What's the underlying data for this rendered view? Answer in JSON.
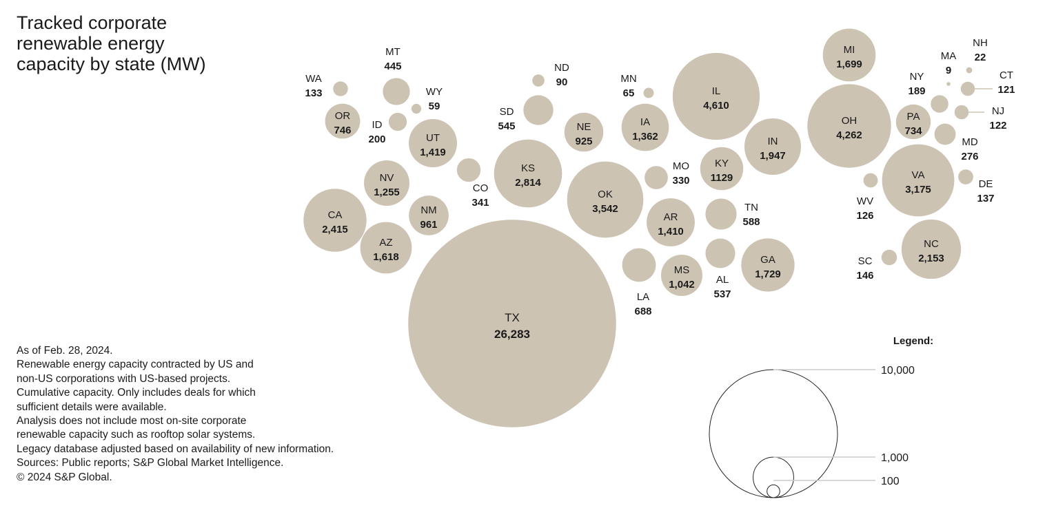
{
  "chart_data": {
    "type": "bubble",
    "title": "Tracked corporate renewable energy capacity by state (MW)",
    "unit": "MW",
    "color": "#cdc3b3",
    "states": [
      {
        "state": "WA",
        "value": 133,
        "value_label": "133"
      },
      {
        "state": "MT",
        "value": 445,
        "value_label": "445"
      },
      {
        "state": "WY",
        "value": 59,
        "value_label": "59"
      },
      {
        "state": "OR",
        "value": 746,
        "value_label": "746"
      },
      {
        "state": "ID",
        "value": 200,
        "value_label": "200"
      },
      {
        "state": "UT",
        "value": 1419,
        "value_label": "1,419"
      },
      {
        "state": "CO",
        "value": 341,
        "value_label": "341"
      },
      {
        "state": "NV",
        "value": 1255,
        "value_label": "1,255"
      },
      {
        "state": "CA",
        "value": 2415,
        "value_label": "2,415"
      },
      {
        "state": "NM",
        "value": 961,
        "value_label": "961"
      },
      {
        "state": "AZ",
        "value": 1618,
        "value_label": "1,618"
      },
      {
        "state": "ND",
        "value": 90,
        "value_label": "90"
      },
      {
        "state": "SD",
        "value": 545,
        "value_label": "545"
      },
      {
        "state": "NE",
        "value": 925,
        "value_label": "925"
      },
      {
        "state": "KS",
        "value": 2814,
        "value_label": "2,814"
      },
      {
        "state": "TX",
        "value": 26283,
        "value_label": "26,283"
      },
      {
        "state": "OK",
        "value": 3542,
        "value_label": "3,542"
      },
      {
        "state": "MN",
        "value": 65,
        "value_label": "65"
      },
      {
        "state": "IA",
        "value": 1362,
        "value_label": "1,362"
      },
      {
        "state": "IL",
        "value": 4610,
        "value_label": "4,610"
      },
      {
        "state": "MO",
        "value": 330,
        "value_label": "330"
      },
      {
        "state": "KY",
        "value": 1129,
        "value_label": "1129"
      },
      {
        "state": "IN",
        "value": 1947,
        "value_label": "1,947"
      },
      {
        "state": "AR",
        "value": 1410,
        "value_label": "1,410"
      },
      {
        "state": "TN",
        "value": 588,
        "value_label": "588"
      },
      {
        "state": "LA",
        "value": 688,
        "value_label": "688"
      },
      {
        "state": "MS",
        "value": 1042,
        "value_label": "1,042"
      },
      {
        "state": "AL",
        "value": 537,
        "value_label": "537"
      },
      {
        "state": "GA",
        "value": 1729,
        "value_label": "1,729"
      },
      {
        "state": "MI",
        "value": 1699,
        "value_label": "1,699"
      },
      {
        "state": "OH",
        "value": 4262,
        "value_label": "4,262"
      },
      {
        "state": "NY",
        "value": 189,
        "value_label": "189"
      },
      {
        "state": "MA",
        "value": 9,
        "value_label": "9"
      },
      {
        "state": "NH",
        "value": 22,
        "value_label": "22"
      },
      {
        "state": "CT",
        "value": 121,
        "value_label": "121"
      },
      {
        "state": "NJ",
        "value": 122,
        "value_label": "122"
      },
      {
        "state": "PA",
        "value": 734,
        "value_label": "734"
      },
      {
        "state": "MD",
        "value": 276,
        "value_label": "276"
      },
      {
        "state": "VA",
        "value": 3175,
        "value_label": "3,175"
      },
      {
        "state": "DE",
        "value": 137,
        "value_label": "137"
      },
      {
        "state": "WV",
        "value": 126,
        "value_label": "126"
      },
      {
        "state": "NC",
        "value": 2153,
        "value_label": "2,153"
      },
      {
        "state": "SC",
        "value": 146,
        "value_label": "146"
      }
    ],
    "legend": {
      "title": "Legend:",
      "entries": [
        {
          "value": 10000,
          "label": "10,000"
        },
        {
          "value": 1000,
          "label": "1,000"
        },
        {
          "value": 100,
          "label": "100"
        }
      ]
    }
  },
  "notes": [
    "As of Feb. 28, 2024.",
    "Renewable energy capacity contracted by US and",
    "non-US corporations with US-based projects.",
    "Cumulative capacity. Only includes deals for which",
    "sufficient details were available.",
    "Analysis does not include most on-site corporate",
    "renewable capacity such as rooftop solar systems.",
    "Legacy database adjusted based on availability of new information.",
    "Sources: Public reports; S&P Global Market Intelligence.",
    "© 2024 S&P Global."
  ]
}
